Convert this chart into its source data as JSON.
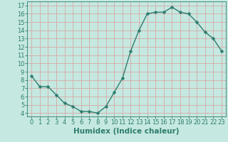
{
  "x": [
    0,
    1,
    2,
    3,
    4,
    5,
    6,
    7,
    8,
    9,
    10,
    11,
    12,
    13,
    14,
    15,
    16,
    17,
    18,
    19,
    20,
    21,
    22,
    23
  ],
  "y": [
    8.5,
    7.2,
    7.2,
    6.2,
    5.2,
    4.8,
    4.2,
    4.2,
    4.0,
    4.8,
    6.5,
    8.2,
    11.5,
    14.0,
    16.0,
    16.2,
    16.2,
    16.8,
    16.2,
    16.0,
    15.0,
    13.8,
    13.0,
    11.5
  ],
  "line_color": "#2e7d6e",
  "marker": "D",
  "marker_size": 2.5,
  "line_width": 1.0,
  "bg_color": "#c5e8e0",
  "grid_color": "#d8a8a8",
  "xlabel": "Humidex (Indice chaleur)",
  "xlabel_fontsize": 7.5,
  "ylabel_ticks": [
    4,
    5,
    6,
    7,
    8,
    9,
    10,
    11,
    12,
    13,
    14,
    15,
    16,
    17
  ],
  "xlim": [
    -0.5,
    23.5
  ],
  "ylim": [
    3.6,
    17.5
  ],
  "tick_color": "#2e7d6e",
  "tick_fontsize": 6,
  "xtick_labels": [
    "0",
    "1",
    "2",
    "3",
    "4",
    "5",
    "6",
    "7",
    "8",
    "9",
    "10",
    "11",
    "12",
    "13",
    "14",
    "15",
    "16",
    "17",
    "18",
    "19",
    "20",
    "21",
    "22",
    "23"
  ]
}
